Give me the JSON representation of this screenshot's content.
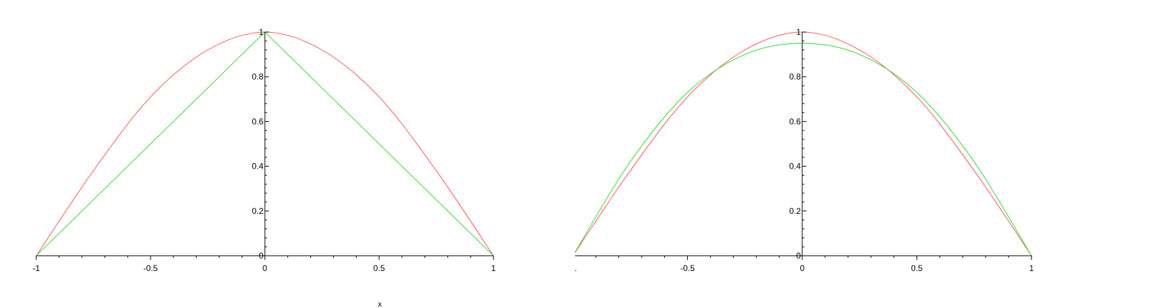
{
  "chart_data": [
    {
      "type": "line",
      "title": "",
      "xlabel": "x",
      "ylabel": "",
      "xlim": [
        -1,
        1
      ],
      "ylim": [
        0,
        1
      ],
      "grid": false,
      "axes_through_origin": true,
      "x_ticks": [
        -1,
        -0.5,
        0,
        0.5,
        1
      ],
      "x_tick_labels": [
        "-1",
        "-0.5",
        "0",
        "0.5",
        "1"
      ],
      "y_ticks": [
        0,
        0.2,
        0.4,
        0.6,
        0.8,
        1
      ],
      "y_tick_labels": [
        "0",
        "0.2",
        "0.4",
        "0.6",
        "0.8",
        "1"
      ],
      "series": [
        {
          "color": "#ff6060",
          "x": [
            -1,
            -0.75,
            -0.5,
            -0.25,
            0,
            0.25,
            0.5,
            0.75,
            1
          ],
          "values": [
            0,
            0.38,
            0.71,
            0.92,
            1,
            0.92,
            0.71,
            0.38,
            0
          ]
        },
        {
          "color": "#40e040",
          "x": [
            -1,
            0,
            1
          ],
          "values": [
            0,
            1,
            0
          ]
        }
      ]
    },
    {
      "type": "line",
      "title": "",
      "xlabel": "",
      "ylabel": "",
      "xlim": [
        -1,
        1
      ],
      "ylim": [
        0,
        1
      ],
      "grid": false,
      "axes_through_origin": true,
      "x_ticks": [
        -1,
        -0.5,
        0,
        0.5,
        1
      ],
      "x_tick_labels": [
        "-1",
        "-0.5",
        "0",
        "0.5",
        "1"
      ],
      "y_ticks": [
        0,
        0.2,
        0.4,
        0.6,
        0.8,
        1
      ],
      "y_tick_labels": [
        "0",
        "0.2",
        "0.4",
        "0.6",
        "0.8",
        "1"
      ],
      "series": [
        {
          "color": "#ff6060",
          "x": [
            -1,
            -0.75,
            -0.5,
            -0.25,
            0,
            0.25,
            0.5,
            0.75,
            1
          ],
          "values": [
            0,
            0.38,
            0.71,
            0.92,
            1,
            0.92,
            0.71,
            0.38,
            0
          ]
        },
        {
          "color": "#40e040",
          "x": [
            -1,
            -0.75,
            -0.5,
            -0.25,
            0,
            0.25,
            0.5,
            0.75,
            1
          ],
          "values": [
            0,
            0.42,
            0.73,
            0.9,
            0.95,
            0.9,
            0.73,
            0.42,
            0
          ]
        }
      ]
    }
  ]
}
